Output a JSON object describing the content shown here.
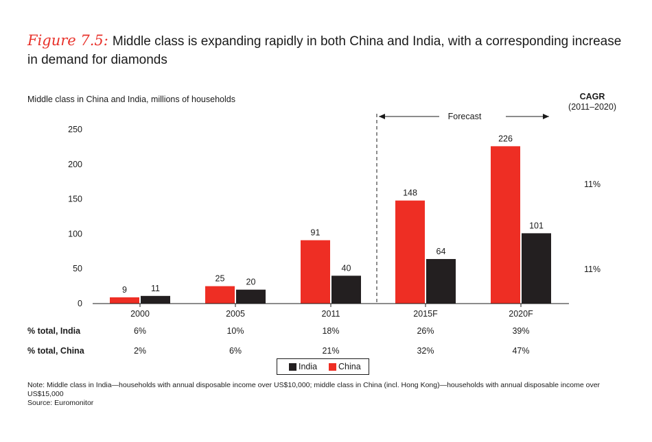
{
  "header": {
    "figure_label": "Figure 7.5:",
    "title": "Middle class is expanding rapidly in both China and India, with a corresponding increase in demand for diamonds"
  },
  "subtitle": "Middle class in China and India, millions of households",
  "cagr": {
    "label": "CAGR",
    "period": "(2011–2020)",
    "china": "11%",
    "india": "11%"
  },
  "forecast_label": "Forecast",
  "table": {
    "rows": [
      {
        "label": "% total, India",
        "values": [
          "6%",
          "10%",
          "18%",
          "26%",
          "39%"
        ]
      },
      {
        "label": "% total, China",
        "values": [
          "2%",
          "6%",
          "21%",
          "32%",
          "47%"
        ]
      }
    ]
  },
  "legend": {
    "india": "India",
    "china": "China"
  },
  "notes": {
    "note": "Note: Middle class in India—households with annual disposable income over US$10,000; middle class in China (incl. Hong Kong)—households with annual disposable income over US$15,000",
    "source": "Source: Euromonitor"
  },
  "colors": {
    "china": "#ee2e24",
    "india": "#231f20"
  },
  "chart_data": {
    "type": "bar",
    "title": "Middle class is expanding rapidly in both China and India, with a corresponding increase in demand for diamonds",
    "ylabel": "Middle class in China and India, millions of households",
    "categories": [
      "2000",
      "2005",
      "2011",
      "2015F",
      "2020F"
    ],
    "series": [
      {
        "name": "China",
        "values": [
          9,
          25,
          91,
          148,
          226
        ]
      },
      {
        "name": "India",
        "values": [
          11,
          20,
          40,
          64,
          101
        ]
      }
    ],
    "ylim": [
      0,
      250
    ],
    "yticks": [
      0,
      50,
      100,
      150,
      200,
      250
    ],
    "grid": false,
    "legend_position": "bottom-center",
    "forecast_start_category": "2015F"
  }
}
